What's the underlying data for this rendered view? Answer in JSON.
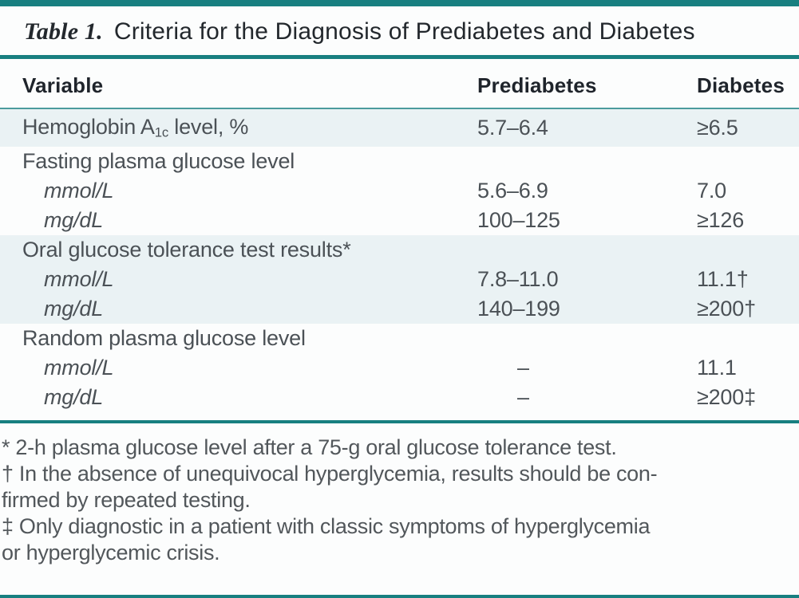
{
  "colors": {
    "teal": "#187f80",
    "teal_light": "#4b9b9d",
    "row_shade": "#eaf2f4",
    "title_text": "#23282d",
    "header_text": "#1f242b",
    "body_text": "#4b5156",
    "footnote_text": "#52575b",
    "background": "#fcfdfd"
  },
  "title": {
    "label": "Table 1.",
    "text": "Criteria for the Diagnosis of Prediabetes and Diabetes"
  },
  "table": {
    "headers": {
      "variable": "Variable",
      "prediabetes": "Prediabetes",
      "diabetes": "Diabetes"
    },
    "rows": [
      {
        "label": "Hemoglobin A",
        "sub": "1c",
        "post": " level, %",
        "prediabetes": "5.7–6.4",
        "diabetes": "≥6.5"
      },
      {
        "label": "Fasting plasma glucose level",
        "prediabetes": "",
        "diabetes": ""
      },
      {
        "label": "mmol/L",
        "prediabetes": "5.6–6.9",
        "diabetes": "7.0"
      },
      {
        "label": "mg/dL",
        "prediabetes": "100–125",
        "diabetes": "≥126"
      },
      {
        "label": "Oral glucose tolerance test results*",
        "prediabetes": "",
        "diabetes": ""
      },
      {
        "label": "mmol/L",
        "prediabetes": "7.8–11.0",
        "diabetes": "11.1†"
      },
      {
        "label": "mg/dL",
        "prediabetes": "140–199",
        "diabetes": "≥200†"
      },
      {
        "label": "Random plasma glucose level",
        "prediabetes": "",
        "diabetes": ""
      },
      {
        "label": "mmol/L",
        "prediabetes": "–",
        "diabetes": "11.1"
      },
      {
        "label": "mg/dL",
        "prediabetes": "–",
        "diabetes": "≥200‡"
      }
    ]
  },
  "footnotes": {
    "lines": [
      "* 2-h plasma glucose level after a 75-g oral glucose tolerance test.",
      "† In the absence of unequivocal hyperglycemia, results should be con-",
      "firmed by repeated testing.",
      "‡ Only diagnostic in a patient with classic symptoms of hyperglycemia",
      "or hyperglycemic crisis."
    ]
  }
}
